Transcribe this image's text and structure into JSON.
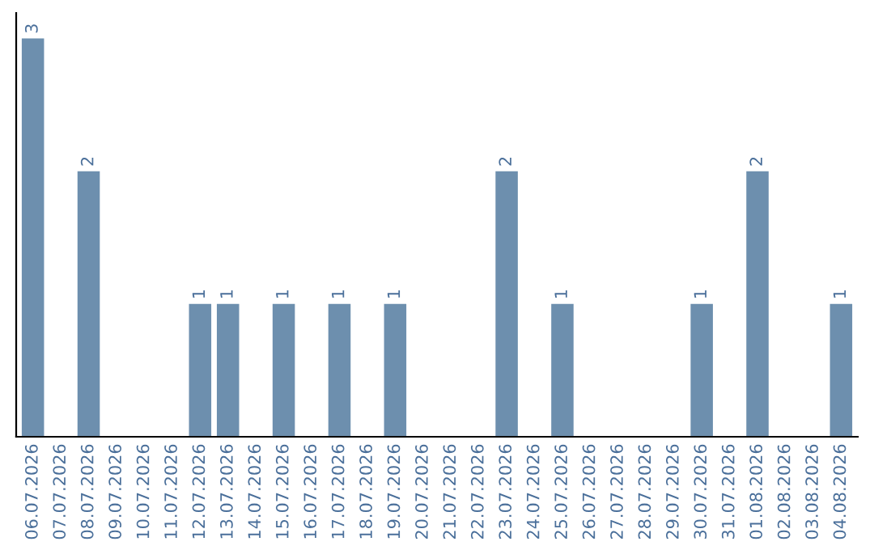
{
  "chart_data": {
    "type": "bar",
    "categories": [
      "06.07.2026",
      "07.07.2026",
      "08.07.2026",
      "09.07.2026",
      "10.07.2026",
      "11.07.2026",
      "12.07.2026",
      "13.07.2026",
      "14.07.2026",
      "15.07.2026",
      "16.07.2026",
      "17.07.2026",
      "18.07.2026",
      "19.07.2026",
      "20.07.2026",
      "21.07.2026",
      "22.07.2026",
      "23.07.2026",
      "24.07.2026",
      "25.07.2026",
      "26.07.2026",
      "27.07.2026",
      "28.07.2026",
      "29.07.2026",
      "30.07.2026",
      "31.07.2026",
      "01.08.2026",
      "02.08.2026",
      "03.08.2026",
      "04.08.2026"
    ],
    "values": [
      3,
      0,
      2,
      0,
      0,
      0,
      1,
      1,
      0,
      1,
      0,
      1,
      0,
      1,
      0,
      0,
      0,
      2,
      0,
      1,
      0,
      0,
      0,
      0,
      1,
      0,
      2,
      0,
      0,
      1
    ],
    "value_labels": [
      "3",
      null,
      "2",
      null,
      null,
      null,
      "1",
      "1",
      null,
      "1",
      null,
      "1",
      null,
      "1",
      null,
      null,
      null,
      "2",
      null,
      "1",
      null,
      null,
      null,
      null,
      "1",
      null,
      "2",
      null,
      null,
      "1"
    ],
    "color": "#6d8fae",
    "grid": false,
    "legend": false
  }
}
